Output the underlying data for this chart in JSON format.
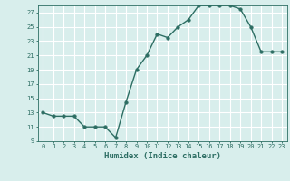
{
  "x": [
    0,
    1,
    2,
    3,
    4,
    5,
    6,
    7,
    8,
    9,
    10,
    11,
    12,
    13,
    14,
    15,
    16,
    17,
    18,
    19,
    20,
    21,
    22,
    23
  ],
  "y": [
    13,
    12.5,
    12.5,
    12.5,
    11,
    11,
    11,
    9.5,
    14.5,
    19,
    21,
    24,
    23.5,
    25,
    26,
    28,
    28,
    28,
    28,
    27.5,
    25,
    21.5,
    21.5,
    21.5
  ],
  "xlabel": "Humidex (Indice chaleur)",
  "ylabel": "",
  "xlim": [
    -0.5,
    23.5
  ],
  "ylim": [
    9,
    28
  ],
  "yticks": [
    9,
    11,
    13,
    15,
    17,
    19,
    21,
    23,
    25,
    27
  ],
  "xticks": [
    0,
    1,
    2,
    3,
    4,
    5,
    6,
    7,
    8,
    9,
    10,
    11,
    12,
    13,
    14,
    15,
    16,
    17,
    18,
    19,
    20,
    21,
    22,
    23
  ],
  "xtick_labels": [
    "0",
    "1",
    "2",
    "3",
    "4",
    "5",
    "6",
    "7",
    "8",
    "9",
    "10",
    "11",
    "12",
    "13",
    "14",
    "15",
    "16",
    "17",
    "18",
    "19",
    "20",
    "21",
    "22",
    "23"
  ],
  "line_color": "#2d6e63",
  "marker_size": 2.5,
  "bg_color": "#d8eeec",
  "grid_color": "#ffffff",
  "tick_color": "#2d6e63",
  "label_color": "#2d6e63",
  "linewidth": 1.0,
  "tick_fontsize": 5.0,
  "label_fontsize": 6.5
}
